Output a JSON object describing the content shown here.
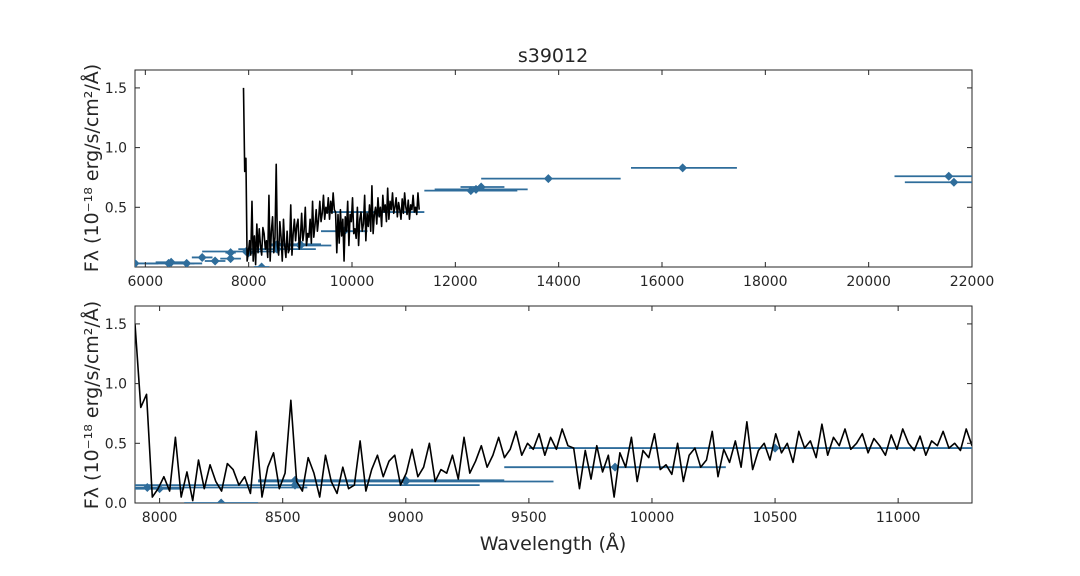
{
  "chart_data": [
    {
      "type": "line",
      "title": "s39012",
      "xlabel": "",
      "ylabel": "Fλ (10⁻¹⁸ erg/s/cm²/Å)",
      "xlim": [
        5800,
        22000
      ],
      "ylim": [
        0,
        1.65
      ],
      "xticks": [
        6000,
        8000,
        10000,
        12000,
        14000,
        16000,
        18000,
        20000,
        22000
      ],
      "yticks": [
        0.5,
        1.0,
        1.5
      ],
      "grid": false,
      "colors": {
        "spectrum": "#000000",
        "photometry": "#2f6d9b"
      },
      "spectrum": {
        "x_start": 7900,
        "x_end": 11300,
        "y": [
          1.5,
          0.8,
          0.91,
          0.05,
          0.12,
          0.22,
          0.1,
          0.55,
          0.05,
          0.26,
          0.02,
          0.36,
          0.12,
          0.32,
          0.18,
          0.1,
          0.33,
          0.28,
          0.15,
          0.22,
          0.08,
          0.6,
          0.05,
          0.3,
          0.42,
          0.12,
          0.25,
          0.86,
          0.18,
          0.1,
          0.38,
          0.25,
          0.05,
          0.4,
          0.18,
          0.08,
          0.3,
          0.12,
          0.15,
          0.52,
          0.1,
          0.28,
          0.4,
          0.22,
          0.35,
          0.4,
          0.15,
          0.25,
          0.45,
          0.22,
          0.3,
          0.5,
          0.18,
          0.28,
          0.25,
          0.4,
          0.2,
          0.55,
          0.25,
          0.35,
          0.48,
          0.3,
          0.4,
          0.55,
          0.38,
          0.45,
          0.6,
          0.4,
          0.5,
          0.45,
          0.58,
          0.4,
          0.55,
          0.45,
          0.62,
          0.48
        ],
        "noise_extra": [
          0.46,
          0.12,
          0.44,
          0.2,
          0.48,
          0.26,
          0.4,
          0.05,
          0.42,
          0.3,
          0.55,
          0.18,
          0.44,
          0.38,
          0.58,
          0.28,
          0.32,
          0.24,
          0.5,
          0.18,
          0.4,
          0.46,
          0.3,
          0.36,
          0.6,
          0.22,
          0.45,
          0.34,
          0.52,
          0.3,
          0.68,
          0.28,
          0.44,
          0.5,
          0.36,
          0.58,
          0.42,
          0.5,
          0.34,
          0.6,
          0.46,
          0.52,
          0.38,
          0.66,
          0.4,
          0.55,
          0.48,
          0.62,
          0.45,
          0.5,
          0.58,
          0.42,
          0.54,
          0.48,
          0.4,
          0.57,
          0.45,
          0.62,
          0.5,
          0.44,
          0.56,
          0.4,
          0.52,
          0.48,
          0.6,
          0.46,
          0.5,
          0.44,
          0.62,
          0.48
        ]
      },
      "photometry": [
        {
          "x": 5800,
          "x_lo": 5650,
          "x_hi": 6250,
          "y": 0.03
        },
        {
          "x": 6450,
          "x_lo": 6000,
          "x_hi": 6950,
          "y": 0.03
        },
        {
          "x": 6500,
          "x_lo": 6200,
          "x_hi": 6850,
          "y": 0.04
        },
        {
          "x": 6800,
          "x_lo": 6500,
          "x_hi": 7100,
          "y": 0.03
        },
        {
          "x": 7100,
          "x_lo": 6900,
          "x_hi": 7300,
          "y": 0.08
        },
        {
          "x": 7350,
          "x_lo": 7150,
          "x_hi": 7550,
          "y": 0.05
        },
        {
          "x": 7650,
          "x_lo": 7450,
          "x_hi": 7850,
          "y": 0.07
        },
        {
          "x": 7650,
          "x_lo": 7550,
          "x_hi": 7750,
          "y": 0.12
        },
        {
          "x": 7950,
          "x_lo": 7100,
          "x_hi": 8600,
          "y": 0.13
        },
        {
          "x": 8000,
          "x_lo": 7900,
          "x_hi": 8100,
          "y": 0.12
        },
        {
          "x": 8250,
          "x_lo": 8100,
          "x_hi": 8400,
          "y": 0.0
        },
        {
          "x": 8550,
          "x_lo": 7800,
          "x_hi": 9300,
          "y": 0.15
        },
        {
          "x": 8550,
          "x_lo": 8400,
          "x_hi": 8700,
          "y": 0.19
        },
        {
          "x": 9000,
          "x_lo": 8600,
          "x_hi": 9400,
          "y": 0.19
        },
        {
          "x": 9000,
          "x_lo": 8400,
          "x_hi": 9600,
          "y": 0.18
        },
        {
          "x": 9850,
          "x_lo": 9400,
          "x_hi": 10300,
          "y": 0.3
        },
        {
          "x": 10500,
          "x_lo": 9500,
          "x_hi": 11400,
          "y": 0.46
        },
        {
          "x": 12300,
          "x_lo": 11400,
          "x_hi": 13200,
          "y": 0.64
        },
        {
          "x": 12400,
          "x_lo": 11600,
          "x_hi": 13400,
          "y": 0.65
        },
        {
          "x": 12500,
          "x_lo": 12100,
          "x_hi": 12950,
          "y": 0.67
        },
        {
          "x": 13800,
          "x_lo": 12500,
          "x_hi": 15200,
          "y": 0.74
        },
        {
          "x": 16400,
          "x_lo": 15400,
          "x_hi": 17450,
          "y": 0.83
        },
        {
          "x": 21550,
          "x_lo": 20500,
          "x_hi": 22600,
          "y": 0.76
        },
        {
          "x": 21650,
          "x_lo": 20700,
          "x_hi": 22700,
          "y": 0.71
        }
      ]
    },
    {
      "type": "line",
      "title": "",
      "xlabel": "Wavelength (Å)",
      "ylabel": "Fλ (10⁻¹⁸ erg/s/cm²/Å)",
      "xlim": [
        7900,
        11300
      ],
      "ylim": [
        0,
        1.65
      ],
      "xticks": [
        8000,
        8500,
        9000,
        9500,
        10000,
        10500,
        11000
      ],
      "yticks": [
        0.0,
        0.5,
        1.0,
        1.5
      ],
      "grid": false,
      "note_spectrum": "same spectrum as panel 1",
      "photometry_same_as": 0
    }
  ]
}
